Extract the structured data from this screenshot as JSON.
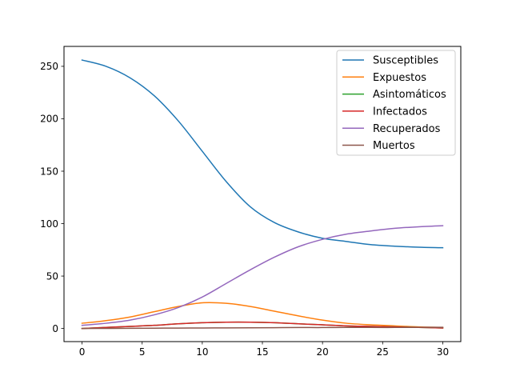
{
  "chart_data": {
    "type": "line",
    "title": "",
    "xlabel": "",
    "ylabel": "",
    "xlim": [
      -1.5,
      31.5
    ],
    "ylim": [
      -12.5,
      269
    ],
    "x_ticks": [
      0,
      5,
      10,
      15,
      20,
      25,
      30
    ],
    "y_ticks": [
      0,
      50,
      100,
      150,
      200,
      250
    ],
    "grid": false,
    "legend_position": "top-right",
    "x": [
      0,
      2,
      4,
      6,
      8,
      10,
      12,
      14,
      16,
      18,
      20,
      22,
      24,
      26,
      28,
      30
    ],
    "series": [
      {
        "name": "Susceptibles",
        "color": "#1f77b4",
        "values": [
          256,
          250,
          239,
          222,
          198,
          169,
          140,
          116,
          101,
          92,
          86,
          83,
          80,
          78.5,
          77.5,
          77
        ]
      },
      {
        "name": "Expuestos",
        "color": "#ff7f0e",
        "values": [
          5,
          7.5,
          11,
          16,
          21,
          24.5,
          24,
          21,
          16.5,
          12,
          8,
          5,
          3.5,
          2.5,
          1.5,
          1
        ]
      },
      {
        "name": "Asintomáticos",
        "color": "#2ca02c",
        "values": [
          0,
          1,
          2,
          3,
          4.5,
          5.5,
          6,
          6,
          5.5,
          4.5,
          3.5,
          2.5,
          2,
          1.5,
          1,
          0.5
        ]
      },
      {
        "name": "Infectados",
        "color": "#d62728",
        "values": [
          0,
          1,
          2,
          3,
          4.5,
          5.5,
          6,
          6,
          5.5,
          4.5,
          3.5,
          2.5,
          2,
          1.5,
          1,
          0.5
        ]
      },
      {
        "name": "Recuperados",
        "color": "#9467bd",
        "values": [
          3,
          5,
          8,
          13,
          20,
          30,
          43,
          56,
          68,
          78,
          85,
          90,
          93,
          95.5,
          97,
          98
        ]
      },
      {
        "name": "Muertos",
        "color": "#8c564b",
        "values": [
          0,
          0.1,
          0.2,
          0.3,
          0.4,
          0.5,
          0.6,
          0.7,
          0.8,
          0.9,
          0.9,
          1.0,
          1.0,
          1.0,
          1.1,
          1.1
        ]
      }
    ]
  }
}
